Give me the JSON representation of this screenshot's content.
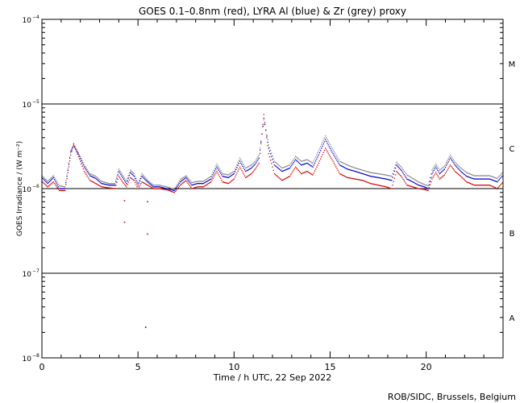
{
  "chart_data": {
    "type": "scatter",
    "title": "GOES 0.1–0.8nm (red), LYRA Al (blue) & Zr (grey) proxy",
    "xlabel": "Time / h UTC, 22 Sep 2022",
    "ylabel": "GOES Irradiance / (W m⁻²)",
    "xlim": [
      0,
      24
    ],
    "ylim": [
      1e-08,
      0.0001
    ],
    "y_scale": "log",
    "grid": false,
    "x_ticks": [
      {
        "value": 0,
        "label": "0"
      },
      {
        "value": 5,
        "label": "5"
      },
      {
        "value": 10,
        "label": "10"
      },
      {
        "value": 15,
        "label": "15"
      },
      {
        "value": 20,
        "label": "20"
      }
    ],
    "y_ticks": [
      {
        "value": 1e-08,
        "base": "10",
        "exp": "−8"
      },
      {
        "value": 1e-07,
        "base": "10",
        "exp": "−7"
      },
      {
        "value": 1e-06,
        "base": "10",
        "exp": "−6"
      },
      {
        "value": 1e-05,
        "base": "10",
        "exp": "−5"
      },
      {
        "value": 0.0001,
        "base": "10",
        "exp": "−4"
      }
    ],
    "class_lines": [
      1e-07,
      1e-06,
      1e-05
    ],
    "class_labels": [
      {
        "label": "A",
        "value": 3e-08
      },
      {
        "label": "B",
        "value": 3e-07
      },
      {
        "label": "C",
        "value": 3e-06
      },
      {
        "label": "M",
        "value": 3e-05
      }
    ],
    "x": [
      0,
      0.3,
      0.6,
      0.9,
      1.2,
      1.5,
      1.65,
      1.9,
      2.2,
      2.5,
      2.8,
      3.1,
      3.5,
      3.8,
      4.0,
      4.2,
      4.4,
      4.6,
      4.8,
      5.0,
      5.2,
      5.5,
      5.8,
      6.1,
      6.5,
      6.9,
      7.2,
      7.5,
      7.8,
      8.1,
      8.4,
      8.8,
      9.1,
      9.4,
      9.7,
      10.0,
      10.3,
      10.6,
      10.9,
      11.1,
      11.3,
      11.55,
      11.8,
      12.1,
      12.5,
      12.9,
      13.2,
      13.5,
      13.8,
      14.1,
      14.4,
      14.75,
      15.1,
      15.5,
      15.9,
      16.3,
      16.7,
      17.1,
      17.5,
      17.9,
      18.2,
      18.45,
      18.7,
      19.0,
      19.3,
      19.6,
      19.9,
      20.1,
      20.3,
      20.5,
      20.7,
      20.95,
      21.25,
      21.5,
      21.8,
      22.1,
      22.5,
      22.9,
      23.3,
      23.7,
      24.0
    ],
    "series": [
      {
        "name": "GOES 0.1–0.8nm",
        "color": "#d40000",
        "values": [
          1.22e-06,
          1.05e-06,
          1.2e-06,
          9.5e-07,
          9.5e-07,
          2.5e-06,
          3.4e-06,
          2.4e-06,
          1.6e-06,
          1.25e-06,
          1.15e-06,
          1.05e-06,
          1.02e-06,
          1e-06,
          1.4e-06,
          1.2e-06,
          1.05e-06,
          1.35e-06,
          1.25e-06,
          1e-06,
          1.2e-06,
          1.1e-06,
          1e-06,
          1e-06,
          9.7e-07,
          9e-07,
          1.1e-06,
          1.25e-06,
          1e-06,
          1.05e-06,
          1.05e-06,
          1.2e-06,
          1.6e-06,
          1.2e-06,
          1.15e-06,
          1.3e-06,
          1.8e-06,
          1.35e-06,
          1.5e-06,
          1.7e-06,
          2e-06,
          7.5e-06,
          2.6e-06,
          1.5e-06,
          1.25e-06,
          1.4e-06,
          1.8e-06,
          1.5e-06,
          1.6e-06,
          1.45e-06,
          2e-06,
          3e-06,
          2.2e-06,
          1.5e-06,
          1.35e-06,
          1.3e-06,
          1.25e-06,
          1.15e-06,
          1.1e-06,
          1.05e-06,
          1e-06,
          1.6e-06,
          1.4e-06,
          1.1e-06,
          1.05e-06,
          1e-06,
          9.8e-07,
          9.5e-07,
          1.3e-06,
          1.55e-06,
          1.3e-06,
          1.45e-06,
          1.9e-06,
          1.6e-06,
          1.4e-06,
          1.2e-06,
          1.1e-06,
          1.1e-06,
          1.1e-06,
          1e-06,
          1.2e-06
        ]
      },
      {
        "name": "LYRA Al proxy",
        "color": "#0000c8",
        "values": [
          1.35e-06,
          1.15e-06,
          1.35e-06,
          1e-06,
          1e-06,
          2.7e-06,
          3.2e-06,
          2.55e-06,
          1.8e-06,
          1.42e-06,
          1.32e-06,
          1.15e-06,
          1.1e-06,
          1.1e-06,
          1.6e-06,
          1.35e-06,
          1.15e-06,
          1.55e-06,
          1.4e-06,
          1.1e-06,
          1.4e-06,
          1.2e-06,
          1.05e-06,
          1.05e-06,
          1e-06,
          9.5e-07,
          1.2e-06,
          1.35e-06,
          1.1e-06,
          1.15e-06,
          1.15e-06,
          1.3e-06,
          1.8e-06,
          1.4e-06,
          1.35e-06,
          1.5e-06,
          2.1e-06,
          1.6e-06,
          1.75e-06,
          1.95e-06,
          2.3e-06,
          6.8e-06,
          3e-06,
          1.9e-06,
          1.6e-06,
          1.75e-06,
          2.2e-06,
          1.9e-06,
          2e-06,
          1.8e-06,
          2.5e-06,
          3.8e-06,
          2.7e-06,
          1.9e-06,
          1.7e-06,
          1.6e-06,
          1.5e-06,
          1.4e-06,
          1.35e-06,
          1.3e-06,
          1.25e-06,
          1.9e-06,
          1.65e-06,
          1.3e-06,
          1.2e-06,
          1.1e-06,
          1.05e-06,
          1e-06,
          1.5e-06,
          1.8e-06,
          1.5e-06,
          1.7e-06,
          2.3e-06,
          1.9e-06,
          1.6e-06,
          1.4e-06,
          1.3e-06,
          1.3e-06,
          1.3e-06,
          1.2e-06,
          1.45e-06
        ]
      },
      {
        "name": "LYRA Zr proxy",
        "color": "#888888",
        "values": [
          1.42e-06,
          1.22e-06,
          1.42e-06,
          1.08e-06,
          1.05e-06,
          2.8e-06,
          3.3e-06,
          2.65e-06,
          1.9e-06,
          1.5e-06,
          1.4e-06,
          1.22e-06,
          1.15e-06,
          1.15e-06,
          1.7e-06,
          1.45e-06,
          1.22e-06,
          1.65e-06,
          1.5e-06,
          1.15e-06,
          1.5e-06,
          1.25e-06,
          1.1e-06,
          1.1e-06,
          1.05e-06,
          9.8e-07,
          1.28e-06,
          1.42e-06,
          1.18e-06,
          1.22e-06,
          1.22e-06,
          1.4e-06,
          1.95e-06,
          1.5e-06,
          1.45e-06,
          1.6e-06,
          2.3e-06,
          1.75e-06,
          1.9e-06,
          2.1e-06,
          2.5e-06,
          6.5e-06,
          3.3e-06,
          2.1e-06,
          1.75e-06,
          1.9e-06,
          2.4e-06,
          2.1e-06,
          2.2e-06,
          2e-06,
          2.8e-06,
          4.2e-06,
          3e-06,
          2.1e-06,
          1.9e-06,
          1.75e-06,
          1.65e-06,
          1.55e-06,
          1.5e-06,
          1.45e-06,
          1.4e-06,
          2.05e-06,
          1.8e-06,
          1.45e-06,
          1.32e-06,
          1.2e-06,
          1.12e-06,
          1.08e-06,
          1.65e-06,
          1.95e-06,
          1.65e-06,
          1.85e-06,
          2.5e-06,
          2.05e-06,
          1.75e-06,
          1.55e-06,
          1.42e-06,
          1.42e-06,
          1.42e-06,
          1.32e-06,
          1.58e-06
        ]
      }
    ],
    "outliers": [
      {
        "x": 4.3,
        "value": 7.2e-07
      },
      {
        "x": 4.3,
        "value": 4e-07
      },
      {
        "x": 5.5,
        "value": 7e-07
      },
      {
        "x": 5.5,
        "value": 2.9e-07
      },
      {
        "x": 5.4,
        "value": 2.3e-08
      }
    ],
    "credit": "ROB/SIDC, Brussels, Belgium"
  }
}
